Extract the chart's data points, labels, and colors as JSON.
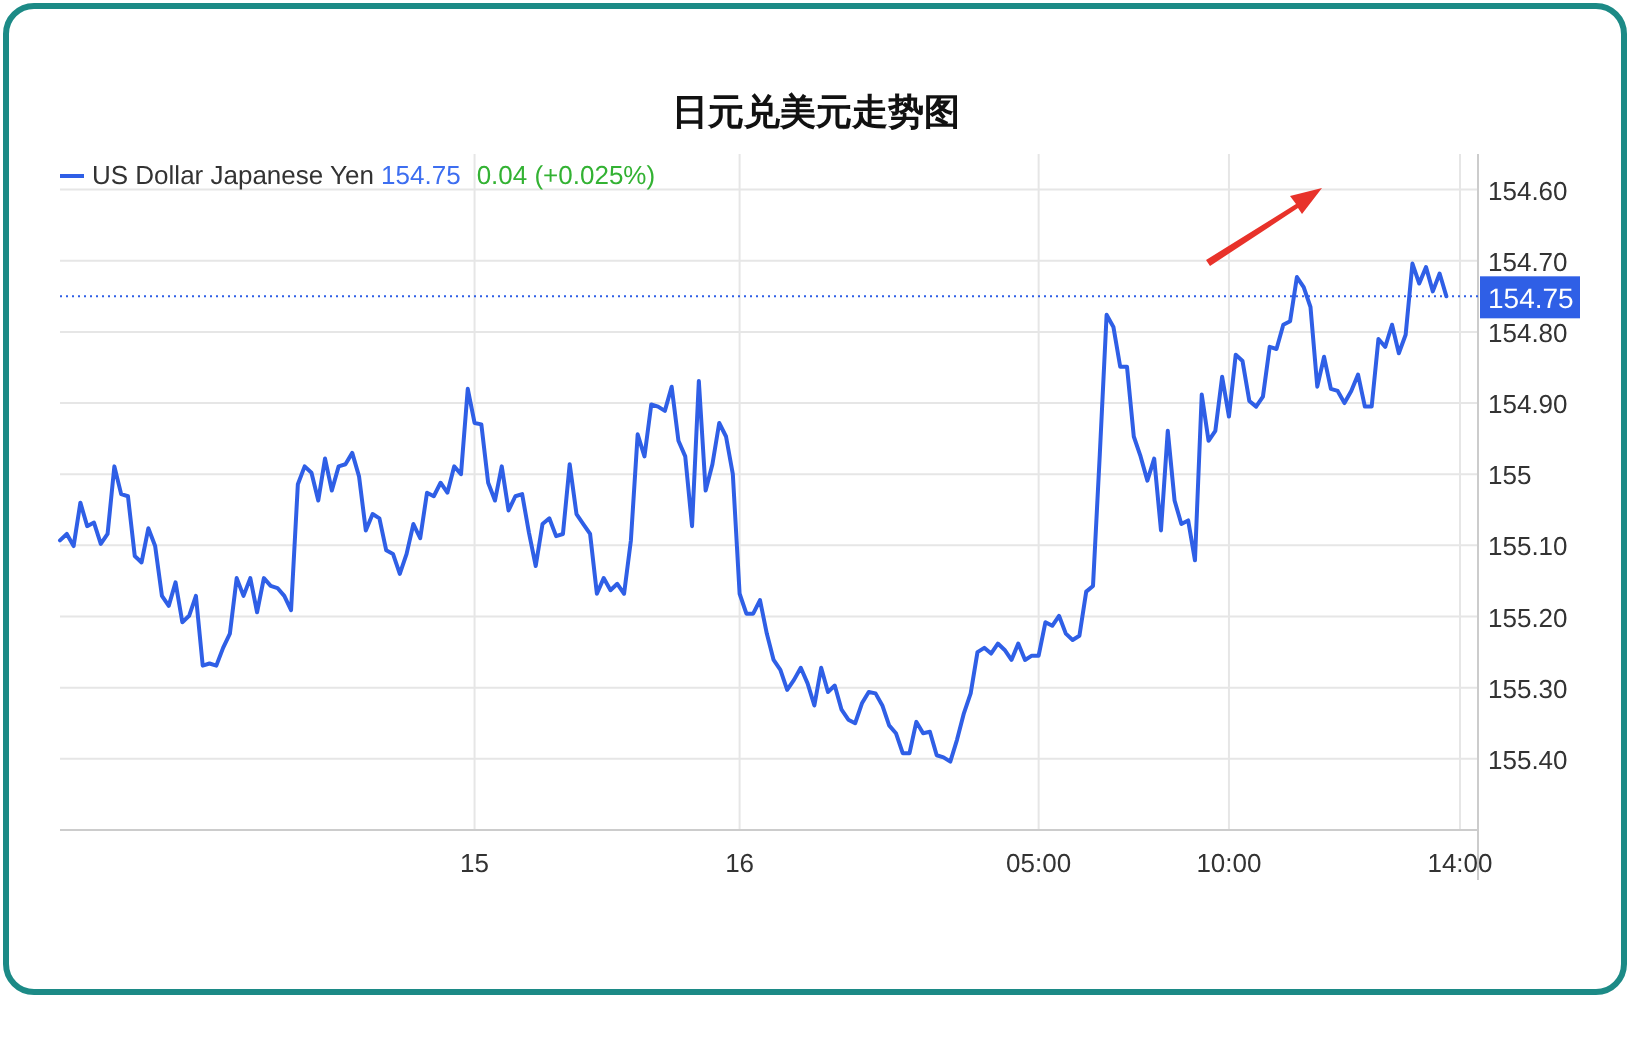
{
  "chart_data": {
    "type": "line",
    "title": "日元兑美元走势图",
    "annotations": [
      "154.75",
      "0.04 (+0.025%)"
    ],
    "categories": [
      null,
      null,
      null,
      null,
      null,
      null,
      null,
      null,
      null,
      null,
      null,
      null,
      null,
      null,
      null,
      null,
      null,
      null,
      null,
      null,
      null,
      null,
      null,
      null,
      null,
      null,
      null,
      null,
      null,
      null,
      null,
      null,
      null,
      null,
      null,
      null,
      null,
      null,
      null,
      null,
      null,
      null,
      null,
      null,
      null,
      null,
      null,
      null,
      null,
      null,
      null,
      null,
      null,
      null,
      null,
      null,
      null,
      null,
      null,
      null,
      null,
      "15",
      null,
      null,
      null,
      null,
      null,
      null,
      null,
      null,
      null,
      null,
      null,
      null,
      null,
      null,
      null,
      null,
      null,
      null,
      null,
      null,
      null,
      null,
      null,
      null,
      null,
      null,
      null,
      null,
      null,
      null,
      null,
      null,
      null,
      null,
      null,
      null,
      null,
      null,
      "16",
      null,
      null,
      null,
      null,
      null,
      null,
      null,
      null,
      null,
      null,
      null,
      null,
      null,
      null,
      null,
      null,
      null,
      null,
      null,
      null,
      null,
      null,
      null,
      null,
      null,
      null,
      null,
      null,
      null,
      null,
      null,
      null,
      null,
      null,
      null,
      null,
      null,
      null,
      null,
      null,
      null,
      null,
      null,
      "05:00",
      null,
      null,
      null,
      null,
      null,
      null,
      null,
      null,
      null,
      null,
      null,
      null,
      null,
      null,
      null,
      null,
      null,
      null,
      null,
      null,
      null,
      null,
      null,
      null,
      null,
      null,
      null,
      "10:00",
      null,
      null,
      null,
      null,
      null,
      null,
      null,
      null,
      null,
      null,
      null,
      null,
      null,
      null,
      null,
      null,
      null,
      null,
      null,
      null,
      null,
      null,
      null,
      null,
      null,
      null,
      null,
      null,
      null,
      null,
      null,
      null,
      null,
      "14:00"
    ],
    "series": [
      {
        "name": "US Dollar Japanese Yen",
        "color": "#2f5fe6",
        "values": [
          155.093,
          155.084,
          155.101,
          155.04,
          155.073,
          155.068,
          155.098,
          155.084,
          154.989,
          155.028,
          155.031,
          155.115,
          155.124,
          155.076,
          155.101,
          155.171,
          155.185,
          155.152,
          155.208,
          155.199,
          155.171,
          155.269,
          155.266,
          155.269,
          155.244,
          155.224,
          155.146,
          155.171,
          155.146,
          155.194,
          155.146,
          155.157,
          155.16,
          155.171,
          155.191,
          155.014,
          154.989,
          154.998,
          155.037,
          154.978,
          155.023,
          154.989,
          154.986,
          154.97,
          155.003,
          155.079,
          155.056,
          155.062,
          155.107,
          155.112,
          155.14,
          155.112,
          155.07,
          155.09,
          155.026,
          155.031,
          155.012,
          155.026,
          154.989,
          155.0,
          154.88,
          154.928,
          154.93,
          155.012,
          155.037,
          154.989,
          155.051,
          155.031,
          155.028,
          155.082,
          155.129,
          155.07,
          155.062,
          155.087,
          155.084,
          154.986,
          155.056,
          155.07,
          155.084,
          155.168,
          155.146,
          155.163,
          155.154,
          155.168,
          155.093,
          154.944,
          154.975,
          154.902,
          154.905,
          154.911,
          154.877,
          154.953,
          154.975,
          155.073,
          154.869,
          155.023,
          154.986,
          154.928,
          154.947,
          155.0,
          155.168,
          155.196,
          155.196,
          155.177,
          155.224,
          155.261,
          155.275,
          155.303,
          155.289,
          155.272,
          155.294,
          155.325,
          155.272,
          155.306,
          155.297,
          155.331,
          155.345,
          155.35,
          155.322,
          155.306,
          155.308,
          155.325,
          155.353,
          155.364,
          155.392,
          155.392,
          155.348,
          155.364,
          155.362,
          155.395,
          155.398,
          155.404,
          155.373,
          155.336,
          155.308,
          155.25,
          155.244,
          155.252,
          155.238,
          155.247,
          155.261,
          155.238,
          155.261,
          155.255,
          155.255,
          155.208,
          155.213,
          155.199,
          155.224,
          155.233,
          155.227,
          155.165,
          155.157,
          154.972,
          154.776,
          154.793,
          154.849,
          154.849,
          154.947,
          154.975,
          155.009,
          154.978,
          155.079,
          154.939,
          155.037,
          155.07,
          155.065,
          155.121,
          154.888,
          154.953,
          154.939,
          154.863,
          154.919,
          154.832,
          154.841,
          154.897,
          154.905,
          154.891,
          154.821,
          154.824,
          154.79,
          154.785,
          154.723,
          154.737,
          154.765,
          154.877,
          154.835,
          154.88,
          154.883,
          154.9,
          154.883,
          154.86,
          154.905,
          154.905,
          154.81,
          154.821,
          154.79,
          154.83,
          154.804,
          154.704,
          154.732,
          154.709,
          154.743,
          154.718,
          154.75,
          null,
          null
        ]
      }
    ],
    "ylim": [
      155.5,
      154.55
    ],
    "yticks": [
      {
        "value": 154.6,
        "label": "154.60"
      },
      {
        "value": 154.7,
        "label": "154.70"
      },
      {
        "value": 154.8,
        "label": "154.80"
      },
      {
        "value": 154.9,
        "label": "154.90"
      },
      155,
      {
        "value": 155.1,
        "label": "155.10"
      },
      {
        "value": 155.2,
        "label": "155.20"
      },
      {
        "value": 155.3,
        "label": "155.30"
      },
      {
        "value": 155.4,
        "label": "155.40"
      }
    ],
    "ref_lines": [
      {
        "axis": "y",
        "value": 154.75,
        "label": "154.75",
        "color": "#2f5fe6",
        "line_style": "dotted"
      }
    ],
    "grid": true,
    "legend": "top left"
  }
}
